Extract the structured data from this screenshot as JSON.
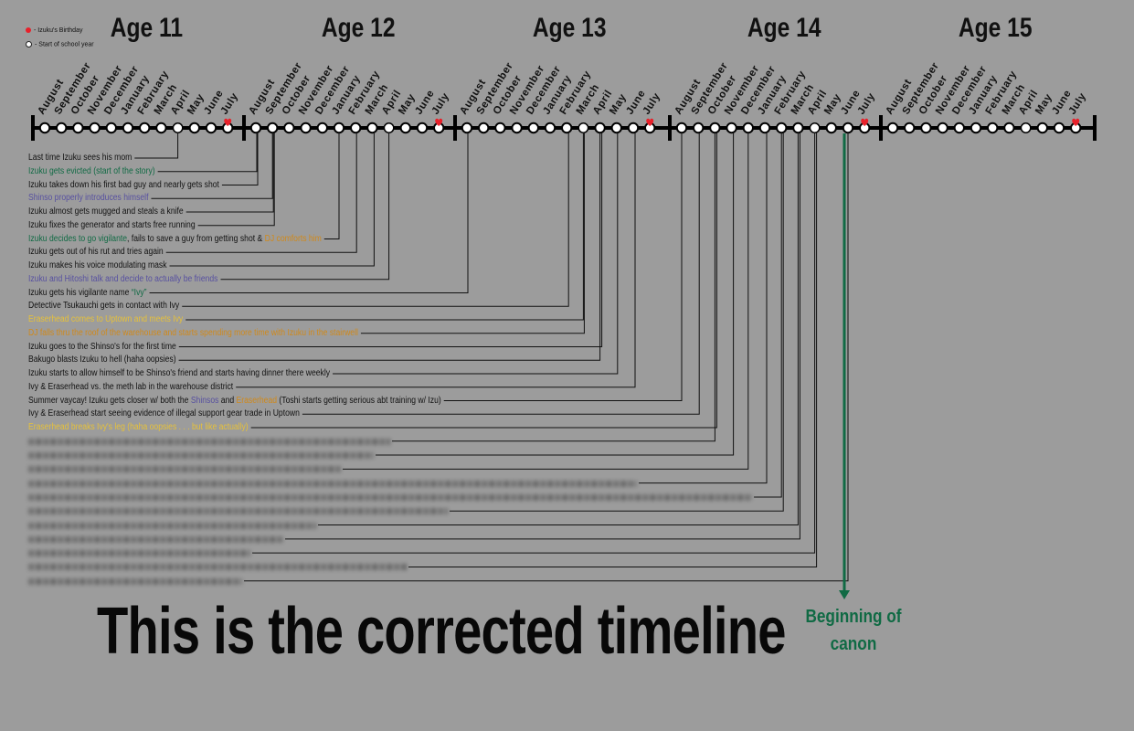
{
  "legend": [
    {
      "label": "- Izuku's Birthday",
      "color": "#e8202a"
    },
    {
      "label": "- Start of school year",
      "color": "#ffffff"
    }
  ],
  "months": [
    "August",
    "September",
    "October",
    "November",
    "December",
    "January",
    "February",
    "March",
    "April",
    "May",
    "June",
    "July"
  ],
  "ages": [
    {
      "label": "Age 11",
      "school_month": "April",
      "birthday_month": "July"
    },
    {
      "label": "Age 12",
      "school_month": "April",
      "birthday_month": "July"
    },
    {
      "label": "Age 13",
      "school_month": "March",
      "birthday_month": "July"
    },
    {
      "label": "Age 14",
      "school_month": "April",
      "birthday_month": "July"
    },
    {
      "label": "Age 15",
      "school_month": "April",
      "birthday_month": "July"
    }
  ],
  "colors": {
    "default": "#111111",
    "green": "#106a44",
    "purple": "#5750a0",
    "orange": "#d0891a",
    "yellow": "#e6c13a",
    "birthday": "#e8202a",
    "canon_arrow": "#106a44"
  },
  "events": [
    {
      "age": 0,
      "month": "April",
      "segments": [
        {
          "text": "Last time Izuku sees his mom",
          "color": "default"
        }
      ]
    },
    {
      "age": 1,
      "month": "August",
      "segments": [
        {
          "text": "Izuku gets evicted (start of the story)",
          "color": "green"
        }
      ]
    },
    {
      "age": 1,
      "month": "August",
      "segments": [
        {
          "text": "Izuku takes down his first bad guy and nearly gets shot",
          "color": "default"
        }
      ]
    },
    {
      "age": 1,
      "month": "September",
      "segments": [
        {
          "text": "Shinso properly introduces himself",
          "color": "purple"
        }
      ]
    },
    {
      "age": 1,
      "month": "September",
      "segments": [
        {
          "text": "Izuku almost gets mugged and steals a knife",
          "color": "default"
        }
      ]
    },
    {
      "age": 1,
      "month": "September",
      "segments": [
        {
          "text": "Izuku fixes the generator and starts free running",
          "color": "default"
        }
      ]
    },
    {
      "age": 1,
      "month": "January",
      "segments": [
        {
          "text": "Izuku decides to go vigilante",
          "color": "green"
        },
        {
          "text": ", fails to save a guy from getting shot & ",
          "color": "default"
        },
        {
          "text": "DJ comforts him",
          "color": "orange"
        }
      ]
    },
    {
      "age": 1,
      "month": "February",
      "segments": [
        {
          "text": "Izuku gets out of his rut and tries again",
          "color": "default"
        }
      ]
    },
    {
      "age": 1,
      "month": "March",
      "segments": [
        {
          "text": "Izuku makes his voice modulating mask",
          "color": "default"
        }
      ]
    },
    {
      "age": 1,
      "month": "April",
      "segments": [
        {
          "text": "Izuku and Hitoshi talk and decide to actually be friends",
          "color": "purple"
        }
      ]
    },
    {
      "age": 2,
      "month": "August",
      "segments": [
        {
          "text": "Izuku gets his vigilante name ",
          "color": "default"
        },
        {
          "text": "“Ivy”",
          "color": "green"
        }
      ]
    },
    {
      "age": 2,
      "month": "February",
      "segments": [
        {
          "text": "Detective Tsukauchi gets in contact with Ivy",
          "color": "default"
        }
      ]
    },
    {
      "age": 2,
      "month": "March",
      "segments": [
        {
          "text": "Eraserhead comes to Uptown and meets Ivy",
          "color": "yellow"
        }
      ]
    },
    {
      "age": 2,
      "month": "March",
      "segments": [
        {
          "text": "DJ falls thru the roof of the warehouse and starts spending more time with Izuku in the stairwell",
          "color": "orange"
        }
      ]
    },
    {
      "age": 2,
      "month": "April",
      "segments": [
        {
          "text": "Izuku goes to the Shinso's for the first time",
          "color": "default"
        }
      ]
    },
    {
      "age": 2,
      "month": "April",
      "segments": [
        {
          "text": "Bakugo blasts Izuku to hell (haha oopsies)",
          "color": "default"
        }
      ]
    },
    {
      "age": 2,
      "month": "May",
      "segments": [
        {
          "text": "Izuku starts to allow himself to be Shinso's friend and starts having dinner there weekly",
          "color": "default"
        }
      ]
    },
    {
      "age": 2,
      "month": "June",
      "segments": [
        {
          "text": "Ivy & Eraserhead vs. the meth lab in the warehouse district",
          "color": "default"
        }
      ]
    },
    {
      "age": 3,
      "month": "August",
      "segments": [
        {
          "text": "Summer vaycay! Izuku gets closer w/ both the ",
          "color": "default"
        },
        {
          "text": "Shinsos",
          "color": "purple"
        },
        {
          "text": " and ",
          "color": "default"
        },
        {
          "text": "Eraserhead",
          "color": "orange"
        },
        {
          "text": " (Toshi starts getting serious abt training w/ Izu)",
          "color": "default"
        }
      ]
    },
    {
      "age": 3,
      "month": "September",
      "segments": [
        {
          "text": "Ivy & Eraserhead start seeing evidence of illegal support gear trade in Uptown",
          "color": "default"
        }
      ]
    },
    {
      "age": 3,
      "month": "October",
      "segments": [
        {
          "text": "Eraserhead breaks Ivy's leg (haha oopsies . . . but like actually)",
          "color": "yellow"
        }
      ]
    }
  ],
  "blurred_events": [
    {
      "age": 3,
      "month": "October",
      "width_frac": 0.44
    },
    {
      "age": 3,
      "month": "November",
      "width_frac": 0.42
    },
    {
      "age": 3,
      "month": "December",
      "width_frac": 0.38
    },
    {
      "age": 3,
      "month": "January",
      "width_frac": 0.74
    },
    {
      "age": 3,
      "month": "February",
      "width_frac": 0.88
    },
    {
      "age": 3,
      "month": "February",
      "width_frac": 0.51
    },
    {
      "age": 3,
      "month": "March",
      "width_frac": 0.35
    },
    {
      "age": 3,
      "month": "March",
      "width_frac": 0.31
    },
    {
      "age": 3,
      "month": "April",
      "width_frac": 0.27
    },
    {
      "age": 3,
      "month": "April",
      "width_frac": 0.46
    },
    {
      "age": 3,
      "month": "June",
      "width_frac": 0.26
    }
  ],
  "canon_marker": {
    "age": 3,
    "month": "June",
    "label_line1": "Beginning of",
    "label_line2": "canon"
  },
  "footer": {
    "title": "This is the corrected timeline"
  }
}
